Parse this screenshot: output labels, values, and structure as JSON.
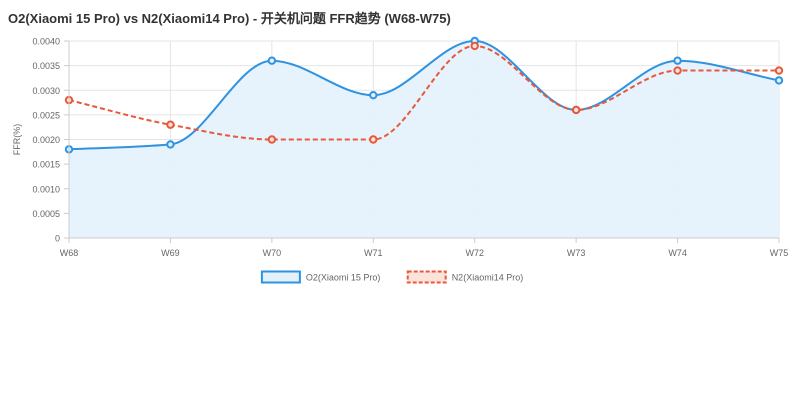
{
  "chart_data": {
    "type": "line",
    "title": "O2(Xiaomi 15 Pro) vs N2(Xiaomi14 Pro) - 开关机问题 FFR趋势 (W68-W75)",
    "xlabel": "",
    "ylabel": "FFR(%)",
    "categories": [
      "W68",
      "W69",
      "W70",
      "W71",
      "W72",
      "W73",
      "W74",
      "W75"
    ],
    "ylim": [
      0,
      0.004
    ],
    "yticks": [
      "0",
      "0.0005",
      "0.0010",
      "0.0015",
      "0.0020",
      "0.0025",
      "0.0030",
      "0.0035",
      "0.0040"
    ],
    "grid": true,
    "legend_position": "bottom",
    "series": [
      {
        "name": "O2(Xiaomi 15 Pro)",
        "values": [
          0.0018,
          0.0019,
          0.0036,
          0.0029,
          0.004,
          0.0026,
          0.0036,
          0.0032
        ],
        "color": "#2f93e0",
        "fill": "#e3f1fc",
        "dashed": false,
        "area": true
      },
      {
        "name": "N2(Xiaomi14 Pro)",
        "values": [
          0.0028,
          0.0023,
          0.002,
          0.002,
          0.0039,
          0.0026,
          0.0034,
          0.0034
        ],
        "color": "#e8583a",
        "fill": "#fbe3dc",
        "dashed": true,
        "area": false
      }
    ]
  }
}
